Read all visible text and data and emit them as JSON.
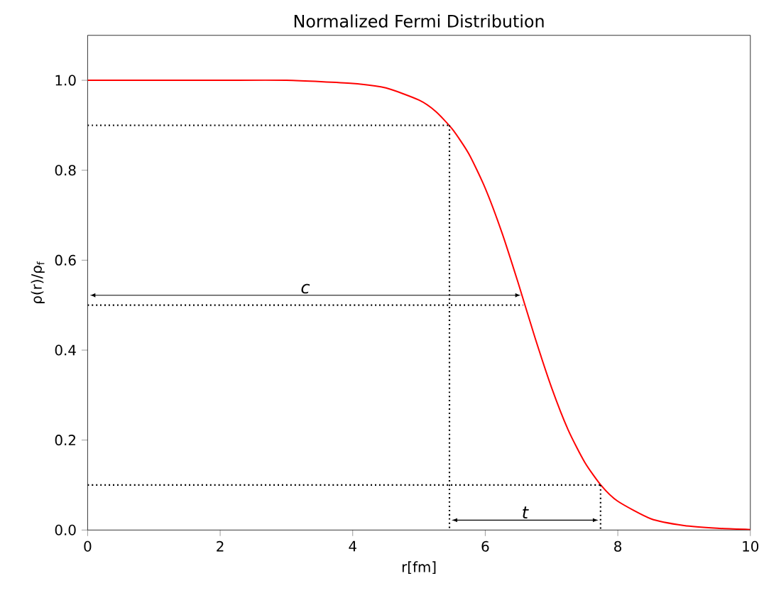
{
  "chart_data": {
    "type": "line",
    "title": "Normalized Fermi Distribution",
    "xlabel": "r[fm]",
    "ylabel": "ρ(r)/ρ$_{f}$",
    "xlim": [
      0,
      10
    ],
    "ylim": [
      0,
      1.1
    ],
    "xticks": [
      0,
      2,
      4,
      6,
      8,
      10
    ],
    "yticks": [
      {
        "value": 0,
        "label": "0.0"
      },
      {
        "value": 0.2,
        "label": "0.2"
      },
      {
        "value": 0.4,
        "label": "0.4"
      },
      {
        "value": 0.6,
        "label": "0.6"
      },
      {
        "value": 0.8,
        "label": "0.8"
      },
      {
        "value": 1.0,
        "label": "1.0"
      }
    ],
    "grid": false,
    "series": [
      {
        "color": "#ff0000",
        "x": [
          0,
          1,
          2,
          3,
          4,
          4.5,
          5,
          5.25,
          5.5,
          5.75,
          6,
          6.25,
          6.5,
          6.75,
          7,
          7.25,
          7.5,
          7.75,
          8,
          8.5,
          9,
          9.5,
          10
        ],
        "values": [
          1.0,
          1.0,
          1.0,
          1.0,
          0.993,
          0.983,
          0.956,
          0.931,
          0.892,
          0.837,
          0.76,
          0.662,
          0.548,
          0.428,
          0.317,
          0.223,
          0.151,
          0.099,
          0.064,
          0.025,
          0.01,
          0.004,
          0.001
        ],
        "line_style": "solid"
      },
      {
        "color": "#000000",
        "x": [
          0,
          5.46
        ],
        "values": [
          0.9,
          0.9
        ],
        "line_style": "dotted"
      },
      {
        "color": "#000000",
        "x": [
          5.46,
          5.46
        ],
        "values": [
          0.9,
          0
        ],
        "line_style": "dotted"
      },
      {
        "color": "#000000",
        "x": [
          0,
          6.57
        ],
        "values": [
          0.5,
          0.5
        ],
        "line_style": "dotted"
      },
      {
        "color": "#000000",
        "x": [
          0,
          7.74
        ],
        "values": [
          0.1,
          0.1
        ],
        "line_style": "dotted"
      },
      {
        "color": "#000000",
        "x": [
          7.74,
          7.74
        ],
        "values": [
          0.1,
          0
        ],
        "line_style": "dotted"
      }
    ],
    "annotations": [
      "c",
      "t"
    ]
  }
}
